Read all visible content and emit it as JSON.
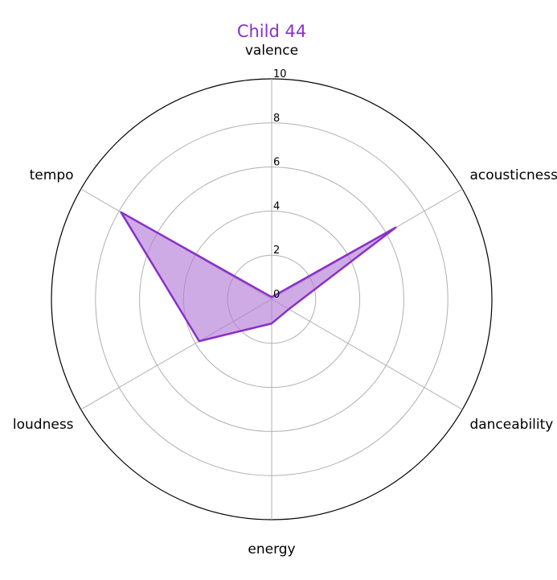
{
  "chart_data": {
    "type": "radar",
    "title": "Child 44",
    "axes": [
      "valence",
      "acousticness",
      "danceability",
      "energy",
      "loudness",
      "tempo"
    ],
    "series": [
      {
        "values": [
          0.1,
          6.5,
          0.9,
          1.1,
          3.8,
          7.9
        ]
      }
    ],
    "r_ticks": [
      "0",
      "2",
      "4",
      "6",
      "8",
      "10"
    ],
    "rlim": [
      0,
      10
    ],
    "grid": true,
    "colors": {
      "line": "#8b2fc9",
      "fill": "#b57ed8",
      "title": "#8b2fc9",
      "grid": "#b0b0b0",
      "outer": "#000000"
    }
  }
}
